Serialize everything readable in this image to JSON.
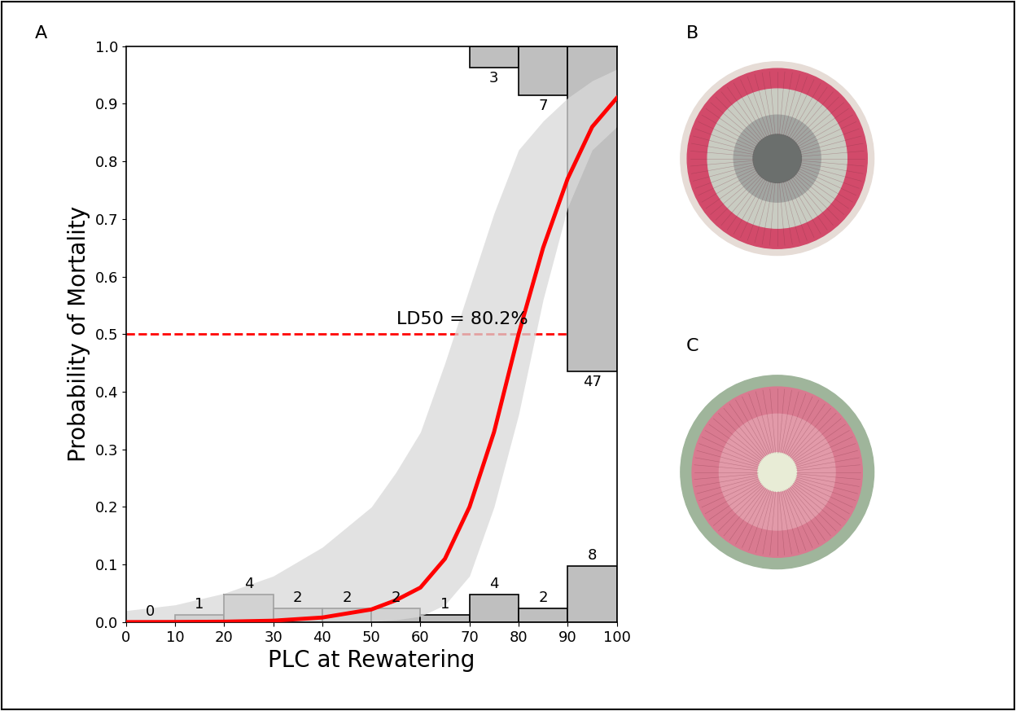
{
  "chart_data": {
    "type": "line",
    "panel_label": "A",
    "x_label": "PLC at Rewatering",
    "y_label": "Probability of Mortality",
    "xlim": [
      0,
      100
    ],
    "ylim": [
      0,
      1
    ],
    "xticks": [
      0,
      10,
      20,
      30,
      40,
      50,
      60,
      70,
      80,
      90,
      100
    ],
    "yticks": [
      {
        "value": 0,
        "label": "0.0"
      },
      {
        "value": 0.1,
        "label": "0.1"
      },
      {
        "value": 0.2,
        "label": "0.2"
      },
      {
        "value": 0.3,
        "label": "0.3"
      },
      {
        "value": 0.4,
        "label": "0.4"
      },
      {
        "value": 0.5,
        "label": "0.5"
      },
      {
        "value": 0.6,
        "label": "0.6"
      },
      {
        "value": 0.7,
        "label": "0.7"
      },
      {
        "value": 0.8,
        "label": "0.8"
      },
      {
        "value": 0.9,
        "label": "0.9"
      },
      {
        "value": 1,
        "label": "1.0"
      }
    ],
    "x": [
      0,
      10,
      20,
      30,
      40,
      50,
      55,
      60,
      65,
      70,
      75,
      80,
      85,
      90,
      95,
      100
    ],
    "curve": {
      "color": "#ff0000",
      "line_style": "solid",
      "values": [
        0.0001,
        0.0003,
        0.0008,
        0.0025,
        0.008,
        0.022,
        0.038,
        0.06,
        0.11,
        0.2,
        0.33,
        0.5,
        0.65,
        0.77,
        0.86,
        0.91
      ]
    },
    "confidence_band": {
      "color": "#d9d9d9",
      "lower": [
        0,
        0,
        0,
        0,
        0,
        0.001,
        0.004,
        0.01,
        0.03,
        0.08,
        0.2,
        0.36,
        0.56,
        0.72,
        0.82,
        0.86
      ],
      "upper": [
        0.02,
        0.03,
        0.05,
        0.08,
        0.13,
        0.2,
        0.26,
        0.33,
        0.45,
        0.58,
        0.71,
        0.82,
        0.87,
        0.91,
        0.94,
        0.96
      ]
    },
    "reference_line": {
      "y": 0.5,
      "color": "#ff0000",
      "line_style": "dashed"
    },
    "annotation": "LD50 = 80.2%",
    "survived_histogram": {
      "color": "#bfbfbf",
      "bins": [
        0,
        10,
        20,
        30,
        40,
        50,
        60,
        70,
        80,
        90,
        100
      ],
      "heights": [
        0,
        0.012,
        0.048,
        0.024,
        0.024,
        0.024,
        0.012,
        0.048,
        0.024,
        0.097
      ],
      "counts": [
        0,
        1,
        4,
        2,
        2,
        2,
        1,
        4,
        2,
        8
      ]
    },
    "died_histogram": {
      "color": "#bfbfbf",
      "bins": [
        70,
        80,
        90,
        100
      ],
      "heights": [
        0.037,
        0.085,
        0.565
      ],
      "counts": [
        3,
        7,
        47
      ]
    }
  },
  "panels": [
    {
      "label": "B"
    },
    {
      "label": "C"
    }
  ]
}
